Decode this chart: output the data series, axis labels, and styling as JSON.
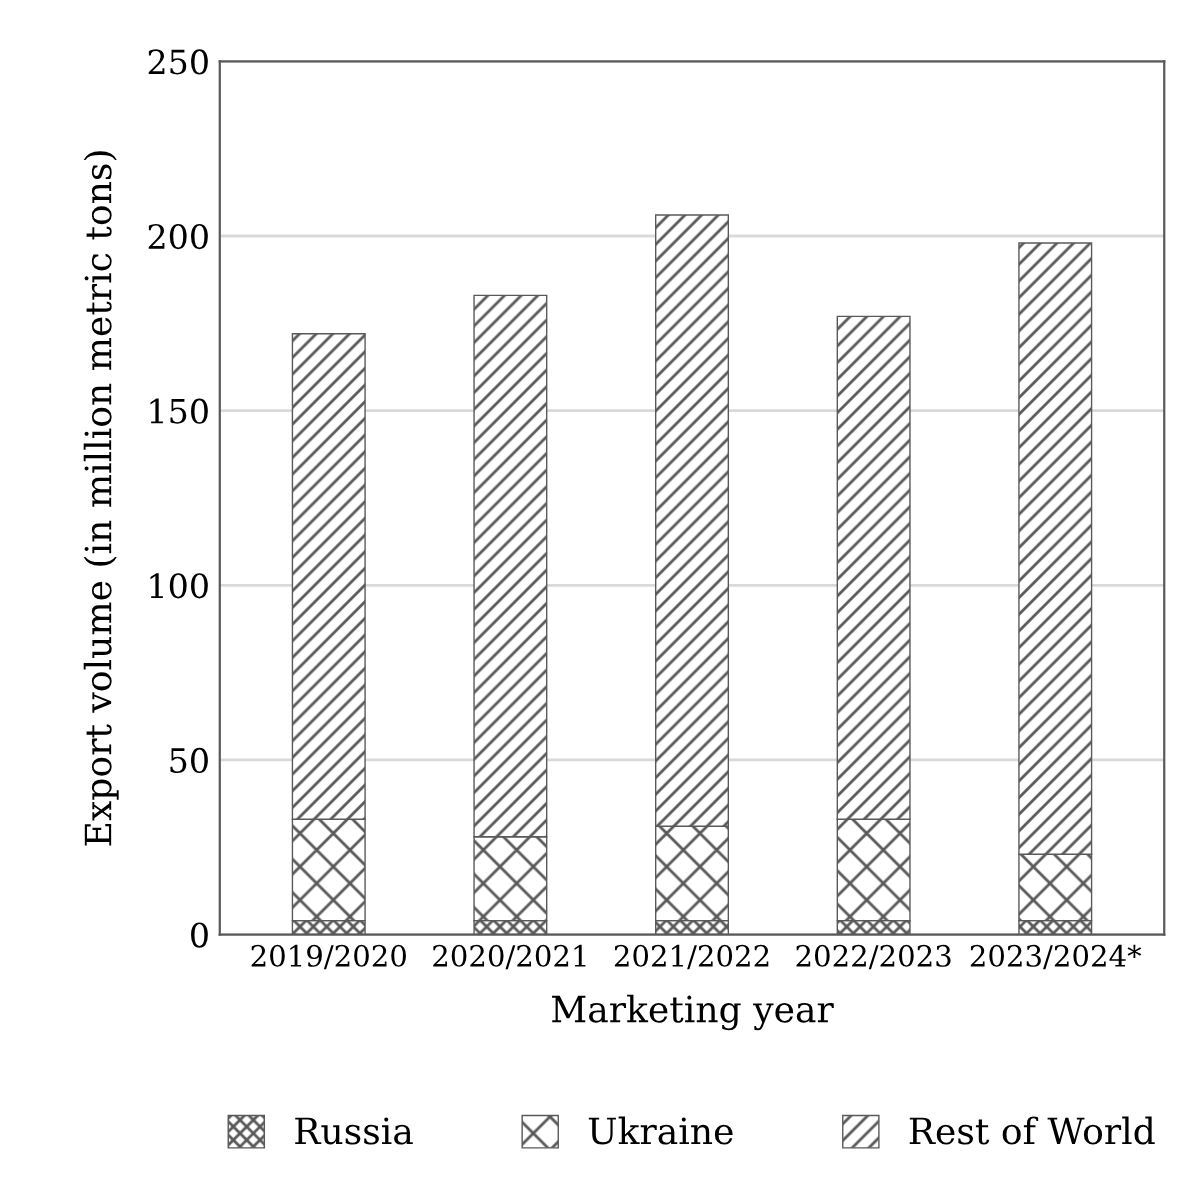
{
  "chart_data": {
    "type": "bar",
    "stacked": true,
    "xlabel": "Marketing year",
    "ylabel": "Export volume (in million metric tons)",
    "categories": [
      "2019/2020",
      "2020/2021",
      "2021/2022",
      "2022/2023",
      "2023/2024*"
    ],
    "series": [
      {
        "name": "Russia",
        "color": "#595959",
        "values": [
          4,
          4,
          4,
          4,
          4
        ]
      },
      {
        "name": "Ukraine",
        "color": "#595959",
        "values": [
          29,
          24,
          27,
          29,
          19
        ]
      },
      {
        "name": "Rest of World",
        "color": "#595959",
        "values": [
          139,
          155,
          175,
          144,
          175
        ]
      }
    ],
    "ylim": [
      0,
      250
    ],
    "yticks": [
      0,
      50,
      100,
      150,
      200,
      250
    ],
    "grid": "y",
    "legend": "bottom"
  }
}
